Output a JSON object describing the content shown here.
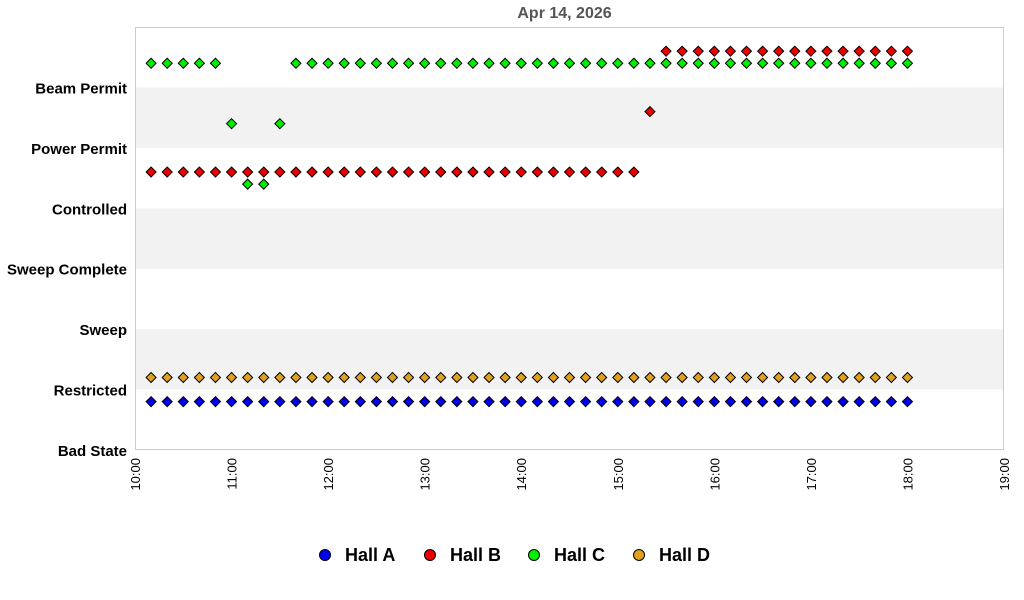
{
  "chart_data": {
    "type": "scatter",
    "title": "Apr 14, 2026",
    "xlabel": "",
    "ylabel": "",
    "xlim": [
      "10:00",
      "19:00"
    ],
    "x_ticks": [
      "10:00",
      "11:00",
      "12:00",
      "13:00",
      "14:00",
      "15:00",
      "16:00",
      "17:00",
      "18:00",
      "19:00"
    ],
    "y_categories": [
      "Bad State",
      "Restricted",
      "Sweep",
      "Sweep Complete",
      "Controlled",
      "Power Permit",
      "Beam Permit"
    ],
    "ylim": [
      0,
      7
    ],
    "grid": "alternating horizontal bands",
    "legend_position": "bottom",
    "series": [
      {
        "name": "Hall A",
        "color": "#0000ee",
        "segments": [
          {
            "from": "10:10",
            "to": "18:00",
            "every_min": 10,
            "level": 0.8
          }
        ],
        "points": []
      },
      {
        "name": "Hall B",
        "color": "#ee0000",
        "segments": [
          {
            "from": "10:10",
            "to": "15:10",
            "every_min": 10,
            "level": 4.6
          },
          {
            "from": "15:30",
            "to": "18:00",
            "every_min": 10,
            "level": 6.6
          }
        ],
        "points": [
          {
            "x": "15:20",
            "y": 5.6
          }
        ]
      },
      {
        "name": "Hall C",
        "color": "#00ee00",
        "segments": [
          {
            "from": "10:10",
            "to": "10:50",
            "every_min": 10,
            "level": 6.4
          },
          {
            "from": "11:40",
            "to": "18:00",
            "every_min": 10,
            "level": 6.4
          }
        ],
        "points": [
          {
            "x": "11:00",
            "y": 5.4
          },
          {
            "x": "11:30",
            "y": 5.4
          },
          {
            "x": "11:10",
            "y": 4.4
          },
          {
            "x": "11:20",
            "y": 4.4
          }
        ]
      },
      {
        "name": "Hall D",
        "color": "#e0a020",
        "segments": [
          {
            "from": "10:10",
            "to": "18:00",
            "every_min": 10,
            "level": 1.2
          }
        ],
        "points": []
      }
    ]
  }
}
